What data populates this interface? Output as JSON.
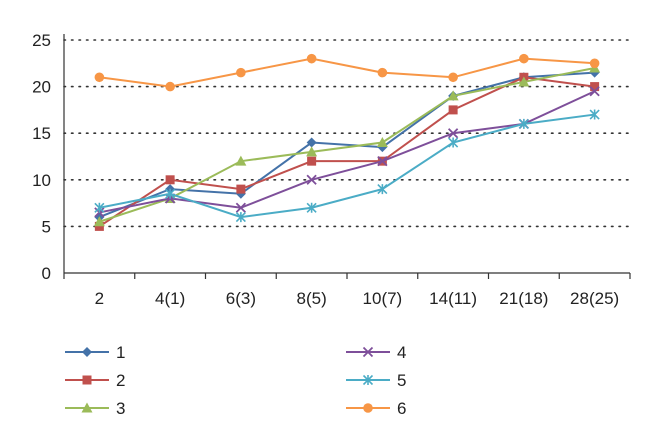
{
  "chart_data": {
    "type": "line",
    "categories": [
      "2",
      "4(1)",
      "6(3)",
      "8(5)",
      "10(7)",
      "14(11)",
      "21(18)",
      "28(25)"
    ],
    "ylim": [
      0,
      25
    ],
    "yticks": [
      0,
      5,
      10,
      15,
      20,
      25
    ],
    "grid": "horizontal dotted",
    "legend_placement": "bottom",
    "series": [
      {
        "name": "1",
        "color": "#4472A8",
        "marker": "diamond",
        "values": [
          6.0,
          9.0,
          8.5,
          14.0,
          13.5,
          19.0,
          21.0,
          21.5
        ]
      },
      {
        "name": "2",
        "color": "#C0504D",
        "marker": "square",
        "values": [
          5.0,
          10.0,
          9.0,
          12.0,
          12.0,
          17.5,
          21.0,
          20.0
        ]
      },
      {
        "name": "3",
        "color": "#9BBB59",
        "marker": "triangle",
        "values": [
          5.5,
          8.0,
          12.0,
          13.0,
          14.0,
          19.0,
          20.5,
          22.0
        ]
      },
      {
        "name": "4",
        "color": "#7E4F9A",
        "marker": "x",
        "values": [
          6.5,
          8.0,
          7.0,
          10.0,
          12.0,
          15.0,
          16.0,
          19.5
        ]
      },
      {
        "name": "5",
        "color": "#4BACC6",
        "marker": "star",
        "values": [
          7.0,
          8.5,
          6.0,
          7.0,
          9.0,
          14.0,
          16.0,
          17.0
        ]
      },
      {
        "name": "6",
        "color": "#F79646",
        "marker": "circle",
        "values": [
          21.0,
          20.0,
          21.5,
          23.0,
          21.5,
          21.0,
          23.0,
          22.5
        ]
      }
    ]
  }
}
